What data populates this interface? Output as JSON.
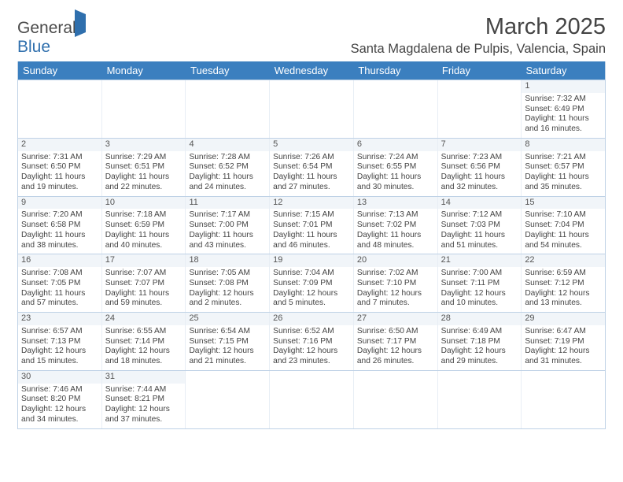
{
  "logo": {
    "text1": "General",
    "text2": "Blue"
  },
  "title": "March 2025",
  "location": "Santa Magdalena de Pulpis, Valencia, Spain",
  "colors": {
    "headerBg": "#3b7fbf",
    "border": "#bfd2e6",
    "accent": "#2f6fad"
  },
  "dayNames": [
    "Sunday",
    "Monday",
    "Tuesday",
    "Wednesday",
    "Thursday",
    "Friday",
    "Saturday"
  ],
  "weeks": [
    [
      null,
      null,
      null,
      null,
      null,
      null,
      {
        "n": "1",
        "sr": "7:32 AM",
        "ss": "6:49 PM",
        "dl": "11 hours and 16 minutes."
      }
    ],
    [
      {
        "n": "2",
        "sr": "7:31 AM",
        "ss": "6:50 PM",
        "dl": "11 hours and 19 minutes."
      },
      {
        "n": "3",
        "sr": "7:29 AM",
        "ss": "6:51 PM",
        "dl": "11 hours and 22 minutes."
      },
      {
        "n": "4",
        "sr": "7:28 AM",
        "ss": "6:52 PM",
        "dl": "11 hours and 24 minutes."
      },
      {
        "n": "5",
        "sr": "7:26 AM",
        "ss": "6:54 PM",
        "dl": "11 hours and 27 minutes."
      },
      {
        "n": "6",
        "sr": "7:24 AM",
        "ss": "6:55 PM",
        "dl": "11 hours and 30 minutes."
      },
      {
        "n": "7",
        "sr": "7:23 AM",
        "ss": "6:56 PM",
        "dl": "11 hours and 32 minutes."
      },
      {
        "n": "8",
        "sr": "7:21 AM",
        "ss": "6:57 PM",
        "dl": "11 hours and 35 minutes."
      }
    ],
    [
      {
        "n": "9",
        "sr": "7:20 AM",
        "ss": "6:58 PM",
        "dl": "11 hours and 38 minutes."
      },
      {
        "n": "10",
        "sr": "7:18 AM",
        "ss": "6:59 PM",
        "dl": "11 hours and 40 minutes."
      },
      {
        "n": "11",
        "sr": "7:17 AM",
        "ss": "7:00 PM",
        "dl": "11 hours and 43 minutes."
      },
      {
        "n": "12",
        "sr": "7:15 AM",
        "ss": "7:01 PM",
        "dl": "11 hours and 46 minutes."
      },
      {
        "n": "13",
        "sr": "7:13 AM",
        "ss": "7:02 PM",
        "dl": "11 hours and 48 minutes."
      },
      {
        "n": "14",
        "sr": "7:12 AM",
        "ss": "7:03 PM",
        "dl": "11 hours and 51 minutes."
      },
      {
        "n": "15",
        "sr": "7:10 AM",
        "ss": "7:04 PM",
        "dl": "11 hours and 54 minutes."
      }
    ],
    [
      {
        "n": "16",
        "sr": "7:08 AM",
        "ss": "7:05 PM",
        "dl": "11 hours and 57 minutes."
      },
      {
        "n": "17",
        "sr": "7:07 AM",
        "ss": "7:07 PM",
        "dl": "11 hours and 59 minutes."
      },
      {
        "n": "18",
        "sr": "7:05 AM",
        "ss": "7:08 PM",
        "dl": "12 hours and 2 minutes."
      },
      {
        "n": "19",
        "sr": "7:04 AM",
        "ss": "7:09 PM",
        "dl": "12 hours and 5 minutes."
      },
      {
        "n": "20",
        "sr": "7:02 AM",
        "ss": "7:10 PM",
        "dl": "12 hours and 7 minutes."
      },
      {
        "n": "21",
        "sr": "7:00 AM",
        "ss": "7:11 PM",
        "dl": "12 hours and 10 minutes."
      },
      {
        "n": "22",
        "sr": "6:59 AM",
        "ss": "7:12 PM",
        "dl": "12 hours and 13 minutes."
      }
    ],
    [
      {
        "n": "23",
        "sr": "6:57 AM",
        "ss": "7:13 PM",
        "dl": "12 hours and 15 minutes."
      },
      {
        "n": "24",
        "sr": "6:55 AM",
        "ss": "7:14 PM",
        "dl": "12 hours and 18 minutes."
      },
      {
        "n": "25",
        "sr": "6:54 AM",
        "ss": "7:15 PM",
        "dl": "12 hours and 21 minutes."
      },
      {
        "n": "26",
        "sr": "6:52 AM",
        "ss": "7:16 PM",
        "dl": "12 hours and 23 minutes."
      },
      {
        "n": "27",
        "sr": "6:50 AM",
        "ss": "7:17 PM",
        "dl": "12 hours and 26 minutes."
      },
      {
        "n": "28",
        "sr": "6:49 AM",
        "ss": "7:18 PM",
        "dl": "12 hours and 29 minutes."
      },
      {
        "n": "29",
        "sr": "6:47 AM",
        "ss": "7:19 PM",
        "dl": "12 hours and 31 minutes."
      }
    ],
    [
      {
        "n": "30",
        "sr": "7:46 AM",
        "ss": "8:20 PM",
        "dl": "12 hours and 34 minutes."
      },
      {
        "n": "31",
        "sr": "7:44 AM",
        "ss": "8:21 PM",
        "dl": "12 hours and 37 minutes."
      },
      null,
      null,
      null,
      null,
      null
    ]
  ],
  "labels": {
    "sunrise": "Sunrise: ",
    "sunset": "Sunset: ",
    "daylight": "Daylight: "
  }
}
